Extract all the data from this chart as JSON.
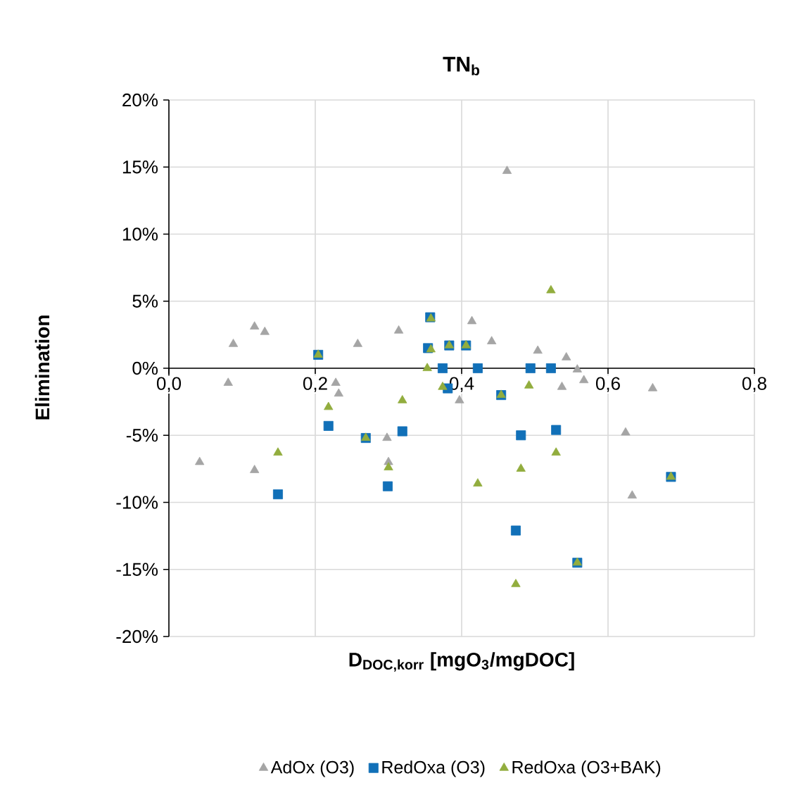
{
  "chart_data": {
    "type": "scatter",
    "title": "**TN$_{b}$**",
    "xlabel": "**D$_{DOC,korr}$ [mgO$_{3}$/mgDOC]**",
    "ylabel": "**Elimination**",
    "series": [
      {
        "name": "AdOx (O3)",
        "color": "#a5a5a5",
        "marker": "triangle",
        "x": [
          0.088,
          0.117,
          0.131,
          0.081,
          0.228,
          0.232,
          0.258,
          0.314,
          0.397,
          0.462,
          0.414,
          0.441,
          0.504,
          0.543,
          0.558,
          0.567,
          0.537,
          0.661,
          0.042,
          0.117,
          0.298,
          0.3,
          0.624,
          0.633
        ],
        "values": [
          1.8,
          3.1,
          2.7,
          -1.1,
          -1.1,
          -1.9,
          1.8,
          2.8,
          -2.4,
          14.7,
          3.5,
          2.0,
          1.3,
          0.8,
          -0.1,
          -0.9,
          -1.4,
          -1.5,
          -7.0,
          -7.6,
          -5.2,
          -7.0,
          -4.8,
          -9.5
        ]
      },
      {
        "name": "RedOxa (O3)",
        "color": "#1170b8",
        "marker": "square",
        "x": [
          0.204,
          0.357,
          0.354,
          0.383,
          0.406,
          0.374,
          0.381,
          0.422,
          0.494,
          0.522,
          0.454,
          0.218,
          0.269,
          0.149,
          0.319,
          0.299,
          0.481,
          0.529,
          0.686,
          0.474,
          0.558
        ],
        "values": [
          1.0,
          3.8,
          1.5,
          1.7,
          1.7,
          0.0,
          -1.5,
          0.0,
          0.0,
          0.0,
          -2.0,
          -4.3,
          -5.2,
          -9.4,
          -4.7,
          -8.8,
          -5.0,
          -4.6,
          -8.1,
          -12.1,
          -14.5
        ]
      },
      {
        "name": "RedOxa (O3+BAK)",
        "color": "#92ad3e",
        "marker": "triangle",
        "x": [
          0.204,
          0.358,
          0.358,
          0.383,
          0.406,
          0.353,
          0.374,
          0.319,
          0.218,
          0.522,
          0.492,
          0.454,
          0.149,
          0.269,
          0.3,
          0.422,
          0.481,
          0.529,
          0.686,
          0.558,
          0.474
        ],
        "values": [
          1.0,
          3.7,
          1.4,
          1.7,
          1.7,
          0.0,
          -1.4,
          -2.4,
          -2.9,
          5.8,
          -1.3,
          -2.0,
          -6.3,
          -5.2,
          -7.4,
          -8.6,
          -7.5,
          -6.3,
          -8.1,
          -14.5,
          -16.1
        ]
      }
    ],
    "xlim": [
      0,
      0.8
    ],
    "ylim": [
      -20,
      20
    ],
    "xticks": [
      {
        "value": 0,
        "label": "0,0"
      },
      {
        "value": 0.2,
        "label": "0,2"
      },
      {
        "value": 0.4,
        "label": "0,4"
      },
      {
        "value": 0.6,
        "label": "0,6"
      },
      {
        "value": 0.8,
        "label": "0,8"
      }
    ],
    "yticks": [
      {
        "value": -20,
        "label": "-20%"
      },
      {
        "value": -15,
        "label": "-15%"
      },
      {
        "value": -10,
        "label": "-10%"
      },
      {
        "value": -5,
        "label": "-5%"
      },
      {
        "value": 0,
        "label": "0%"
      },
      {
        "value": 5,
        "label": "5%"
      },
      {
        "value": 10,
        "label": "10%"
      },
      {
        "value": 15,
        "label": "15%"
      },
      {
        "value": 20,
        "label": "20%"
      }
    ],
    "grid": true,
    "legend": "bottom"
  }
}
